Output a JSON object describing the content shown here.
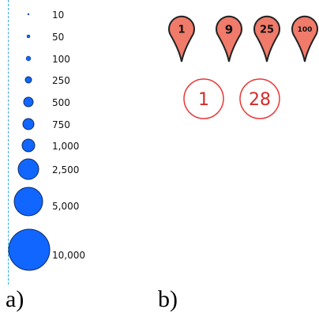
{
  "panel_a": {
    "caption": "a)",
    "legend": [
      {
        "label": "10"
      },
      {
        "label": "50"
      },
      {
        "label": "100"
      },
      {
        "label": "250"
      },
      {
        "label": "500"
      },
      {
        "label": "750"
      },
      {
        "label": "1,000"
      },
      {
        "label": "2,500"
      },
      {
        "label": "5,000"
      },
      {
        "label": "10,000"
      }
    ],
    "circle_fill": "#1166ff",
    "circle_stroke": "#0d2a66",
    "guide_color": "#33aadd"
  },
  "panel_b": {
    "caption": "b)",
    "pins": [
      {
        "label": "1"
      },
      {
        "label": "9"
      },
      {
        "label": "25"
      },
      {
        "label": "100"
      }
    ],
    "pin_fill": "#f07b6b",
    "pin_stroke": "#222222",
    "clusters": [
      {
        "label": "1"
      },
      {
        "label": "28"
      }
    ],
    "cluster_stroke": "#e83838",
    "cluster_text_color": "#d42a2a"
  }
}
